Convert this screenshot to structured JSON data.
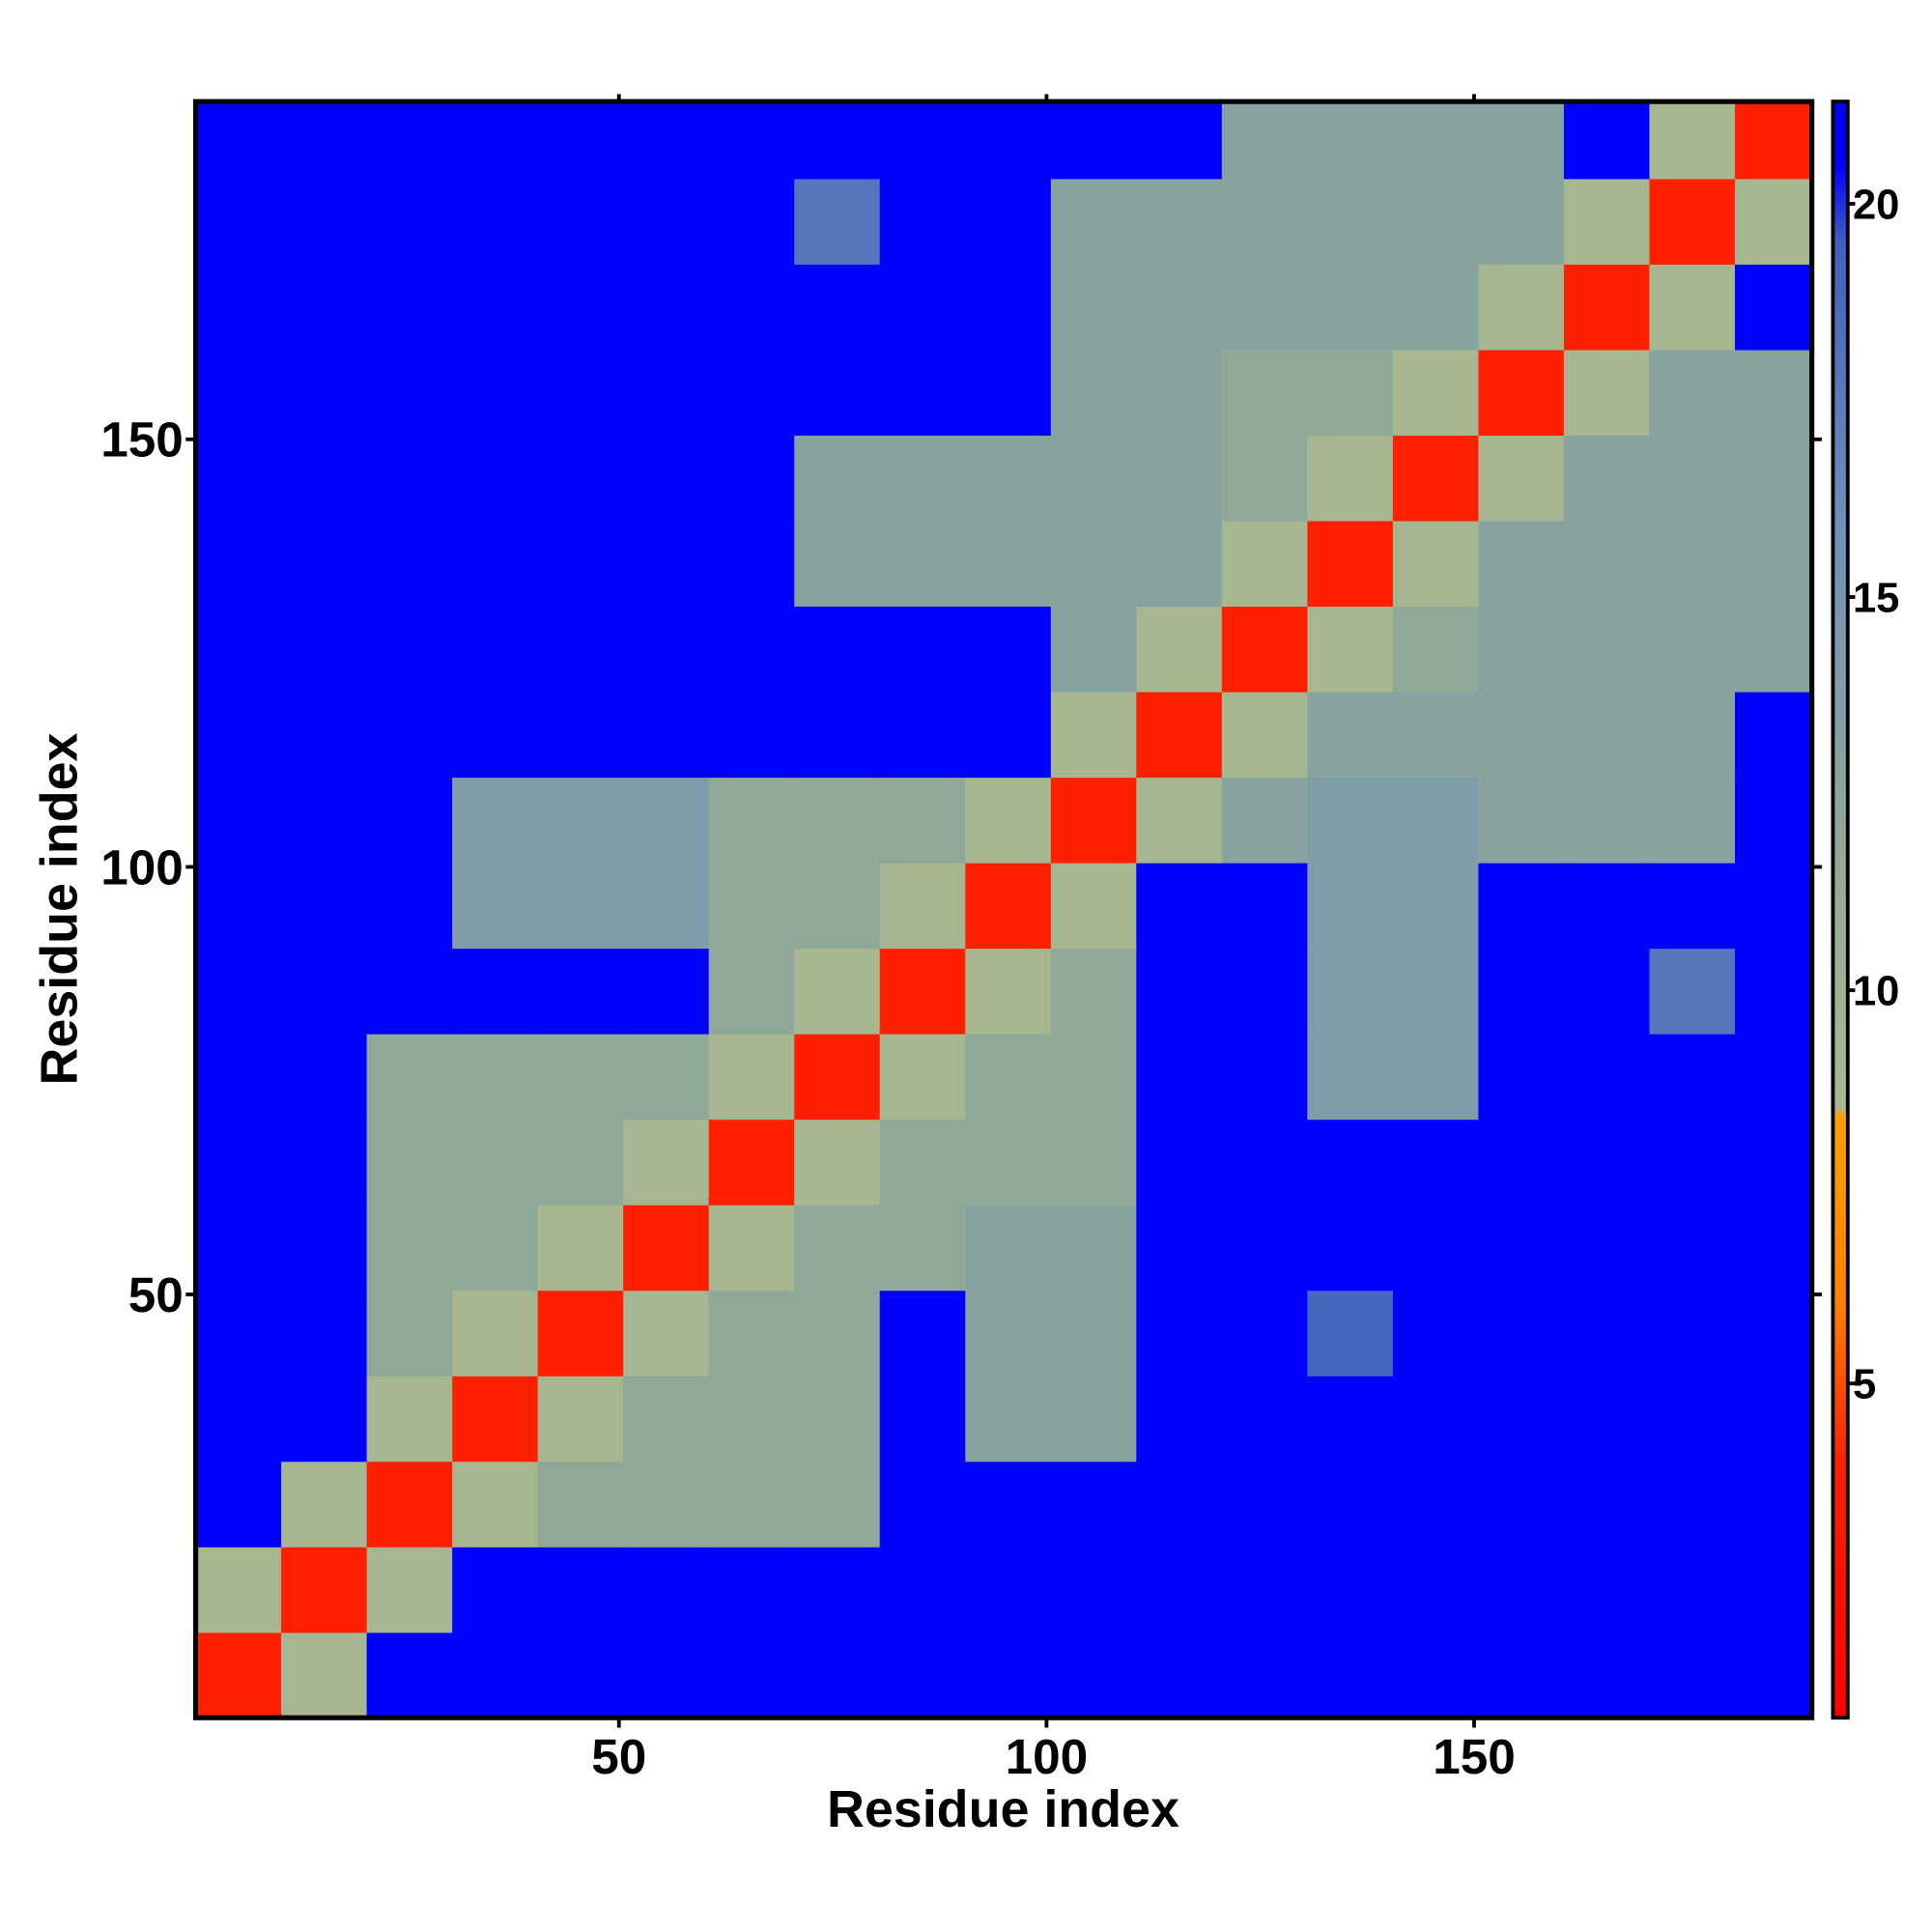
{
  "chart_data": {
    "type": "heatmap",
    "xlabel": "Residue index",
    "ylabel": "Residue index",
    "xbins": [
      0.5,
      10.5,
      20.5,
      30.5,
      40.5,
      50.5,
      60.5,
      70.5,
      80.5,
      90.5,
      100.5,
      110.5,
      120.5,
      130.5,
      140.5,
      150.5,
      160.5,
      170.5,
      180.5,
      189.5
    ],
    "ybins": [
      0.5,
      10.5,
      20.5,
      30.5,
      40.5,
      50.5,
      60.5,
      70.5,
      80.5,
      90.5,
      100.5,
      110.5,
      120.5,
      130.5,
      140.5,
      150.5,
      160.5,
      170.5,
      180.5,
      189.5
    ],
    "xlim": [
      0.5,
      189.5
    ],
    "ylim": [
      0.5,
      189.5
    ],
    "xticks": [
      50,
      100,
      150
    ],
    "yticks": [
      50,
      100,
      150
    ],
    "z": [
      [
        4,
        9,
        21,
        21,
        21,
        21,
        21,
        21,
        21,
        21,
        21,
        21,
        21,
        21,
        21,
        21,
        21,
        21,
        21
      ],
      [
        9,
        4,
        9,
        21,
        21,
        21,
        21,
        21,
        21,
        21,
        21,
        21,
        21,
        21,
        21,
        21,
        21,
        21,
        21
      ],
      [
        21,
        9,
        4,
        9,
        12,
        12,
        12,
        12,
        21,
        21,
        21,
        21,
        21,
        21,
        21,
        21,
        21,
        21,
        21
      ],
      [
        21,
        21,
        9,
        4,
        9,
        12,
        12,
        12,
        21,
        13,
        13,
        21,
        21,
        21,
        21,
        21,
        21,
        21,
        21
      ],
      [
        21,
        21,
        12,
        9,
        4,
        9,
        12,
        12,
        21,
        13,
        13,
        21,
        21,
        19,
        21,
        21,
        21,
        21,
        21
      ],
      [
        21,
        21,
        12,
        12,
        9,
        4,
        9,
        12,
        12,
        13,
        13,
        21,
        21,
        21,
        21,
        21,
        21,
        21,
        21
      ],
      [
        21,
        21,
        12,
        12,
        12,
        9,
        4,
        9,
        12,
        12,
        12,
        21,
        21,
        21,
        21,
        21,
        21,
        21,
        21
      ],
      [
        21,
        21,
        12,
        12,
        12,
        12,
        9,
        4,
        9,
        12,
        12,
        21,
        21,
        14,
        14,
        21,
        21,
        21,
        21
      ],
      [
        21,
        21,
        21,
        21,
        21,
        21,
        12,
        9,
        4,
        9,
        12,
        21,
        21,
        14,
        14,
        21,
        21,
        18,
        21
      ],
      [
        21,
        21,
        21,
        14,
        14,
        14,
        12,
        12,
        9,
        4,
        9,
        21,
        21,
        14,
        14,
        21,
        21,
        21,
        21
      ],
      [
        21,
        21,
        21,
        14,
        14,
        14,
        12,
        12,
        12,
        9,
        4,
        9,
        13,
        14,
        14,
        13,
        13,
        13,
        21
      ],
      [
        21,
        21,
        21,
        21,
        21,
        21,
        21,
        21,
        21,
        21,
        9,
        4,
        9,
        13,
        13,
        13,
        13,
        13,
        21
      ],
      [
        21,
        21,
        21,
        21,
        21,
        21,
        21,
        21,
        21,
        21,
        13,
        9,
        4,
        9,
        12,
        13,
        13,
        13,
        13
      ],
      [
        21,
        21,
        21,
        21,
        21,
        21,
        21,
        13,
        13,
        13,
        13,
        13,
        9,
        4,
        9,
        13,
        13,
        13,
        13
      ],
      [
        21,
        21,
        21,
        21,
        21,
        21,
        21,
        13,
        13,
        13,
        13,
        13,
        12,
        9,
        4,
        9,
        13,
        13,
        13
      ],
      [
        21,
        21,
        21,
        21,
        21,
        21,
        21,
        21,
        21,
        21,
        13,
        13,
        12,
        12,
        9,
        4,
        9,
        13,
        13
      ],
      [
        21,
        21,
        21,
        21,
        21,
        21,
        21,
        21,
        21,
        21,
        13,
        13,
        13,
        13,
        13,
        9,
        4,
        9,
        21
      ],
      [
        21,
        21,
        21,
        21,
        21,
        21,
        21,
        18,
        21,
        21,
        13,
        13,
        13,
        13,
        13,
        13,
        9,
        4,
        9
      ],
      [
        21,
        21,
        21,
        21,
        21,
        21,
        21,
        21,
        21,
        21,
        21,
        21,
        13,
        13,
        13,
        13,
        21,
        9,
        4
      ]
    ],
    "colorbar": {
      "zlim": [
        0.75,
        21.3
      ],
      "zticks": [
        5,
        10,
        15,
        20
      ],
      "stops": [
        {
          "value": 0.75,
          "color": "#ff0000"
        },
        {
          "value": 4,
          "color": "#ff2000"
        },
        {
          "value": 6,
          "color": "#ff8000"
        },
        {
          "value": 8.4,
          "color": "#ffa000"
        },
        {
          "value": 8.5,
          "color": "#a8b890"
        },
        {
          "value": 12,
          "color": "#90a898"
        },
        {
          "value": 16,
          "color": "#7090b8"
        },
        {
          "value": 19.5,
          "color": "#4060c0"
        },
        {
          "value": 20.5,
          "color": "#0000ff"
        },
        {
          "value": 21.3,
          "color": "#0000ff"
        }
      ]
    }
  }
}
